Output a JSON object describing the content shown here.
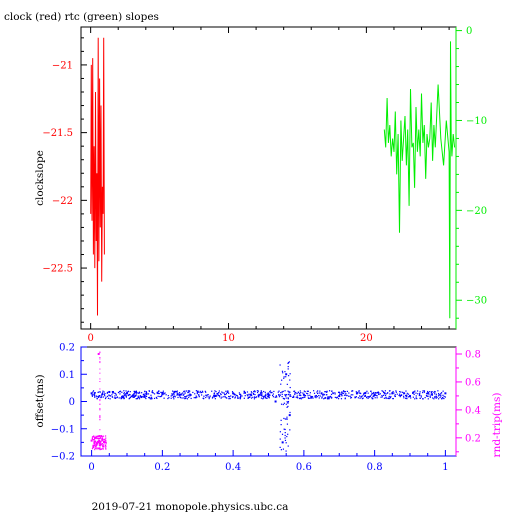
{
  "title": "clock (red) rtc (green) slopes",
  "footer": "2019-07-21 monopole.physics.ubc.ca",
  "colors": {
    "clock": "#ff0000",
    "rtc": "#00ee00",
    "offset": "#0000ff",
    "rndtrip": "#ff00ff",
    "axis": "#000000"
  },
  "chart_data": [
    {
      "type": "line",
      "title": "clock (red) rtc (green) slopes",
      "ylabel": "clockslope",
      "xlim": [
        -0.7,
        26.5
      ],
      "ylim_left": [
        -22.95,
        -20.72
      ],
      "ylim_right": [
        -33.2,
        0.4
      ],
      "xticks": [
        0,
        10,
        20
      ],
      "yticks_left": [
        -21,
        -21.5,
        -22,
        -22.5
      ],
      "yticks_left_labels": [
        "−21",
        "−21.5",
        "−22",
        "−22.5"
      ],
      "yticks_right": [
        0,
        -10,
        -20,
        -30
      ],
      "yticks_right_labels": [
        "0",
        "−10",
        "−20",
        "−30"
      ],
      "grid": false,
      "series": [
        {
          "name": "clock",
          "axis": "left",
          "x": [
            0.0,
            0.05,
            0.1,
            0.15,
            0.2,
            0.25,
            0.3,
            0.35,
            0.4,
            0.45,
            0.5,
            0.55,
            0.6,
            0.65,
            0.7,
            0.75,
            0.8,
            0.85,
            0.9,
            0.95,
            1.0
          ],
          "y": [
            -22.1,
            -21.0,
            -22.15,
            -20.95,
            -22.4,
            -21.6,
            -22.5,
            -21.2,
            -22.3,
            -21.8,
            -22.85,
            -20.8,
            -22.45,
            -21.1,
            -22.2,
            -21.3,
            -22.6,
            -21.9,
            -22.1,
            -20.8,
            -22.4
          ]
        },
        {
          "name": "rtc",
          "axis": "right",
          "x": [
            21.3,
            21.4,
            21.5,
            21.6,
            21.7,
            21.8,
            21.9,
            22.0,
            22.1,
            22.2,
            22.3,
            22.4,
            22.5,
            22.6,
            22.7,
            22.8,
            22.9,
            23.0,
            23.1,
            23.2,
            23.3,
            23.4,
            23.5,
            23.6,
            23.7,
            23.8,
            23.9,
            24.0,
            24.1,
            24.2,
            24.3,
            24.4,
            24.5,
            24.6,
            24.7,
            24.8,
            24.9,
            25.0,
            25.2,
            25.4,
            25.6,
            25.8,
            26.0,
            26.05,
            26.1,
            26.15,
            26.2,
            26.3,
            26.4
          ],
          "y": [
            -11.0,
            -13.0,
            -7.5,
            -12.5,
            -10.5,
            -14.0,
            -12.0,
            -13.5,
            -9.0,
            -16.0,
            -11.5,
            -22.5,
            -10.0,
            -14.5,
            -12.0,
            -9.5,
            -15.0,
            -11.0,
            -19.5,
            -6.5,
            -13.0,
            -12.5,
            -17.5,
            -8.5,
            -13.5,
            -11.0,
            -14.0,
            -7.0,
            -12.5,
            -10.5,
            -16.5,
            -11.5,
            -13.0,
            -12.0,
            -8.0,
            -14.5,
            -10.5,
            -13.0,
            -6.0,
            -12.0,
            -15.0,
            -10.0,
            -13.5,
            -32.0,
            -1.2,
            -12.0,
            -14.0,
            -11.5,
            -13.0
          ]
        }
      ]
    },
    {
      "type": "scatter",
      "xlabel": "",
      "ylabel": "offset(ms)",
      "ylabel_right": "rnd-trip(ms)",
      "xlim": [
        -0.03,
        1.03
      ],
      "ylim_left": [
        -0.2,
        0.2
      ],
      "ylim_right": [
        0.07,
        0.85
      ],
      "xticks": [
        0,
        0.2,
        0.4,
        0.6,
        0.8,
        1
      ],
      "xticks_labels": [
        "0",
        "0.2",
        "0.4",
        "0.6",
        "0.8",
        "1"
      ],
      "yticks_left": [
        0.2,
        0.1,
        0,
        -0.1,
        -0.2
      ],
      "yticks_left_labels": [
        "0.2",
        "0.1",
        "0",
        "−0.1",
        "−0.2"
      ],
      "yticks_right": [
        0.8,
        0.6,
        0.4,
        0.2
      ],
      "yticks_right_labels": [
        "0.8",
        "0.6",
        "0.4",
        "0.2"
      ],
      "grid": false,
      "series": [
        {
          "name": "offset",
          "axis": "left",
          "x": [
            0.0,
            0.05,
            0.1,
            0.15,
            0.2,
            0.25,
            0.3,
            0.35,
            0.4,
            0.45,
            0.5,
            0.52,
            0.54,
            0.55,
            0.56,
            0.6,
            0.65,
            0.7,
            0.75,
            0.8,
            0.85,
            0.9,
            0.95,
            1.0
          ],
          "y": [
            0.03,
            0.035,
            0.03,
            0.02,
            0.03,
            0.025,
            0.035,
            0.02,
            0.03,
            0.025,
            0.02,
            0.0,
            -0.15,
            0.1,
            -0.05,
            0.025,
            0.03,
            0.02,
            0.03,
            0.025,
            0.03,
            0.02,
            0.03,
            0.03
          ]
        },
        {
          "name": "rnd-trip",
          "axis": "right",
          "x": [
            0.0,
            0.005,
            0.01,
            0.015,
            0.02,
            0.025,
            0.03,
            0.035
          ],
          "y": [
            0.18,
            0.14,
            0.2,
            0.16,
            0.8,
            0.15,
            0.19,
            0.17
          ]
        }
      ]
    }
  ]
}
